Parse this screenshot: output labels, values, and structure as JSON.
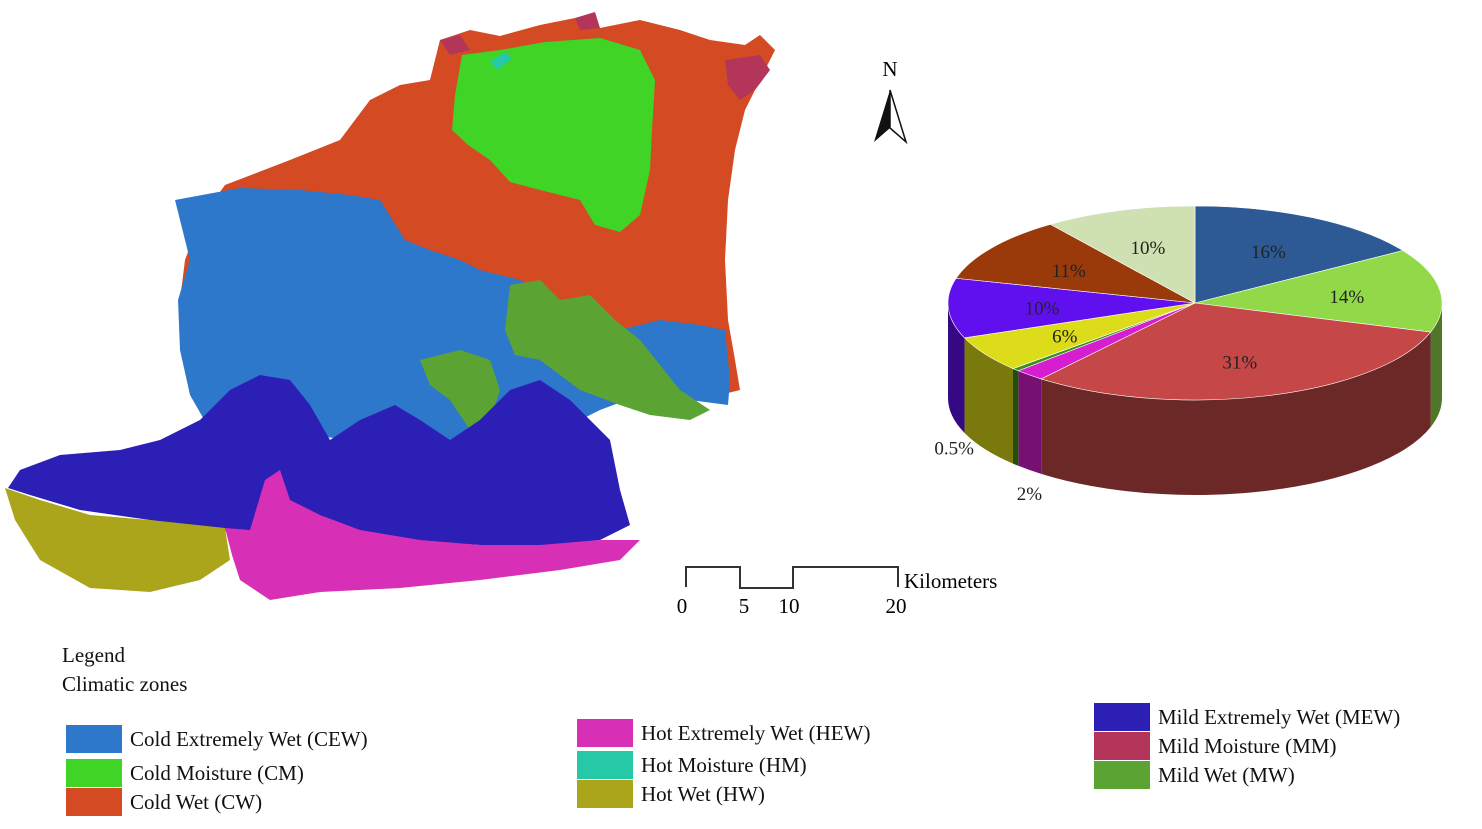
{
  "north_arrow": {
    "label": "N"
  },
  "scale_bar": {
    "unit": "Kilometers",
    "ticks": [
      "0",
      "5",
      "10",
      "20"
    ]
  },
  "legend": {
    "heading": "Legend",
    "subheading": "Climatic zones",
    "items": [
      {
        "label": "Cold Extremely Wet (CEW)",
        "color": "#2e78cc"
      },
      {
        "label": "Cold Moisture (CM)",
        "color": "#3fd426"
      },
      {
        "label": "Cold Wet (CW)",
        "color": "#d44a22"
      },
      {
        "label": "Hot Extremely Wet (HEW)",
        "color": "#d730b6"
      },
      {
        "label": "Hot Moisture (HM)",
        "color": "#25c9a8"
      },
      {
        "label": "Hot Wet (HW)",
        "color": "#aba51c"
      },
      {
        "label": "Mild Extremely Wet (MEW)",
        "color": "#2b1fb5"
      },
      {
        "label": "Mild Moisture (MM)",
        "color": "#b3355a"
      },
      {
        "label": "Mild Wet (MW)",
        "color": "#5ba333"
      }
    ]
  },
  "chart_data": {
    "type": "pie",
    "slices": [
      {
        "label": "16%",
        "value": 16,
        "color": "#2d5a94"
      },
      {
        "label": "14%",
        "value": 14,
        "color": "#92d94a"
      },
      {
        "label": "31%",
        "value": 31,
        "color": "#c54747"
      },
      {
        "label": "2%",
        "value": 2,
        "color": "#d61ed0"
      },
      {
        "label": "0.5%",
        "value": 0.5,
        "color": "#3a8f1a"
      },
      {
        "label": "6%",
        "value": 6,
        "color": "#dcdc1a"
      },
      {
        "label": "10%",
        "value": 10,
        "color": "#6010ef"
      },
      {
        "label": "11%",
        "value": 11,
        "color": "#9a3a0a"
      },
      {
        "label": "10%",
        "value": 10,
        "color": "#cfe0b2"
      }
    ]
  }
}
